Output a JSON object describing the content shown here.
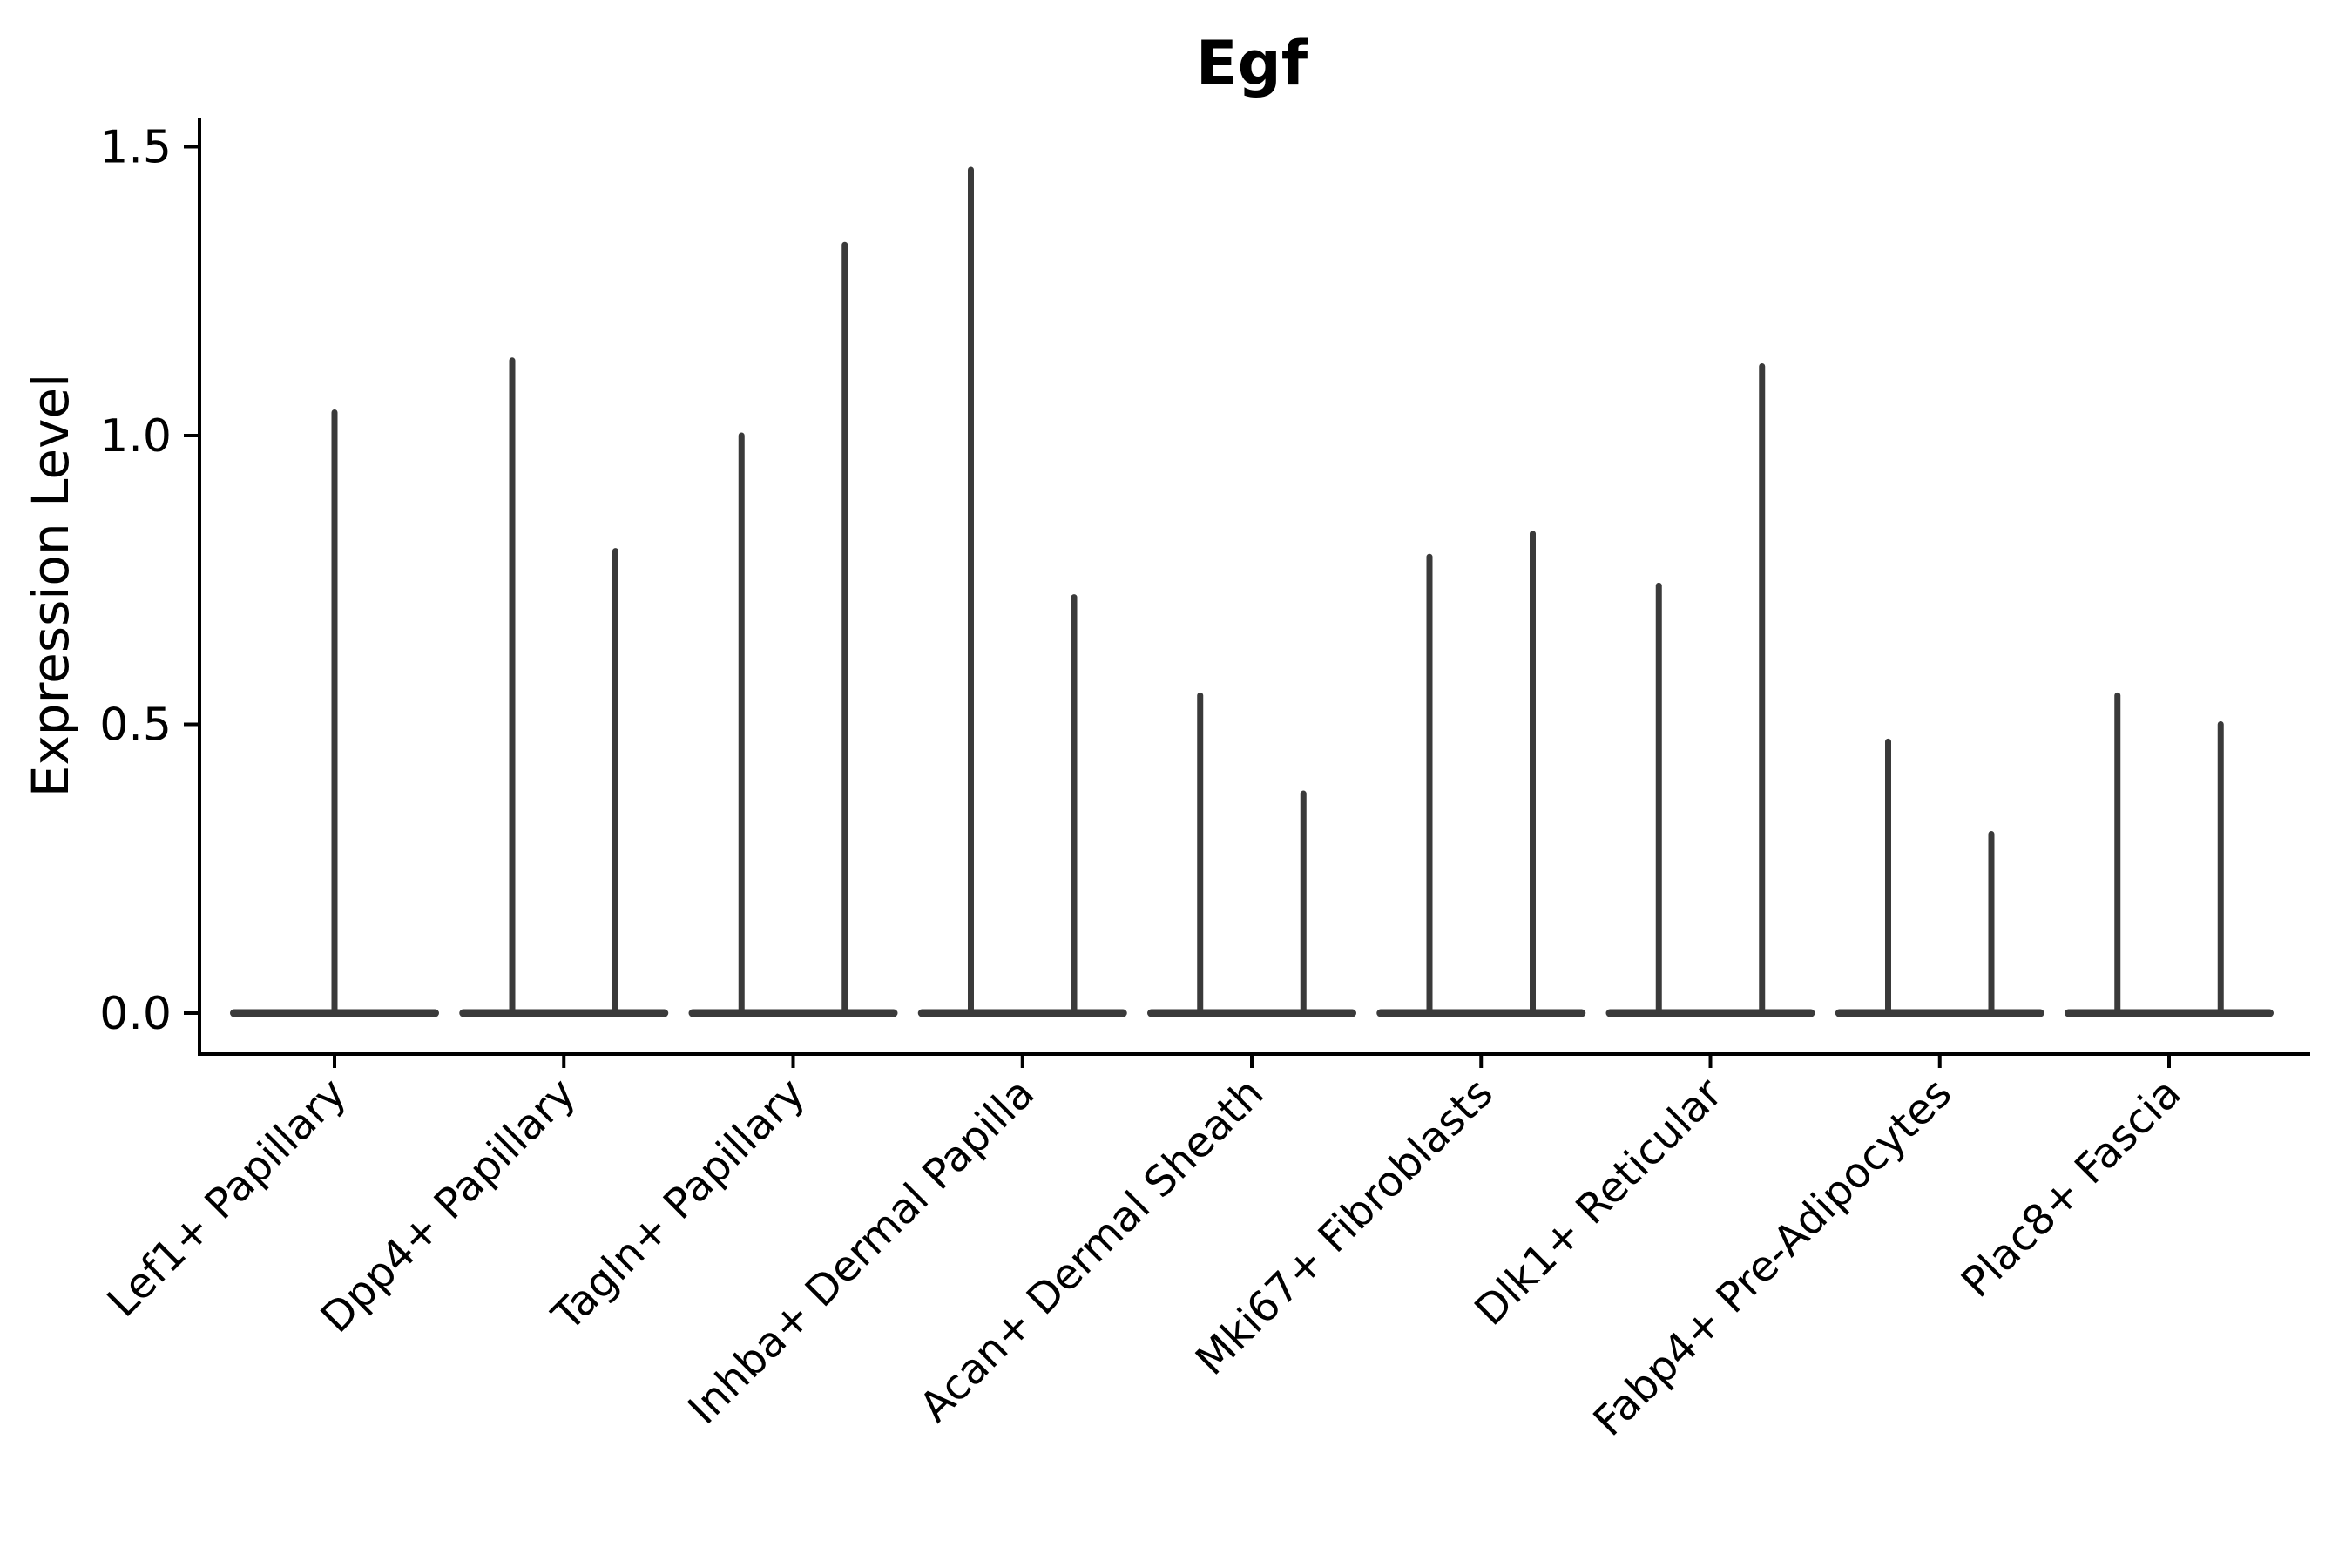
{
  "chart_data": {
    "type": "violin",
    "title": "Egf",
    "ylabel": "Expression Level",
    "xlabel": "",
    "ylim": [
      0.0,
      1.5
    ],
    "yticks": [
      0.0,
      0.5,
      1.0,
      1.5
    ],
    "ytick_labels": [
      "0.0",
      "0.5",
      "1.0",
      "1.5"
    ],
    "grid": false,
    "legend": "none",
    "categories": [
      "Lef1+ Papillary",
      "Dpp4+ Papillary",
      "Tagln+ Papillary",
      "Inhba+ Dermal Papilla",
      "Acan+ Dermal Sheath",
      "Mki67+ Fibroblasts",
      "Dlk1+ Reticular",
      "Fabp4+ Pre-Adipocytes",
      "Plac8+ Fascia"
    ],
    "violins": [
      {
        "category": "Lef1+ Papillary",
        "spike_maxima": [
          1.04
        ]
      },
      {
        "category": "Dpp4+ Papillary",
        "spike_maxima": [
          1.13,
          0.8
        ]
      },
      {
        "category": "Tagln+ Papillary",
        "spike_maxima": [
          1.0,
          1.33
        ]
      },
      {
        "category": "Inhba+ Dermal Papilla",
        "spike_maxima": [
          1.46,
          0.72
        ]
      },
      {
        "category": "Acan+ Dermal Sheath",
        "spike_maxima": [
          0.55,
          0.38
        ]
      },
      {
        "category": "Mki67+ Fibroblasts",
        "spike_maxima": [
          0.79,
          0.83
        ]
      },
      {
        "category": "Dlk1+ Reticular",
        "spike_maxima": [
          0.74,
          1.12
        ]
      },
      {
        "category": "Fabp4+ Pre-Adipocytes",
        "spike_maxima": [
          0.47,
          0.31
        ]
      },
      {
        "category": "Plac8+ Fascia",
        "spike_maxima": [
          0.55,
          0.5
        ]
      }
    ],
    "violin_shape_note": "Each violin is flat and wide at expression 0 with a needle-thin spike up to its maximum value; categories with two spikes contain two violins side by side, the first category has a single centered violin.",
    "colors": {
      "violin": "#3a3a3a",
      "axis": "#000000",
      "text": "#000000",
      "background": "#ffffff"
    }
  }
}
